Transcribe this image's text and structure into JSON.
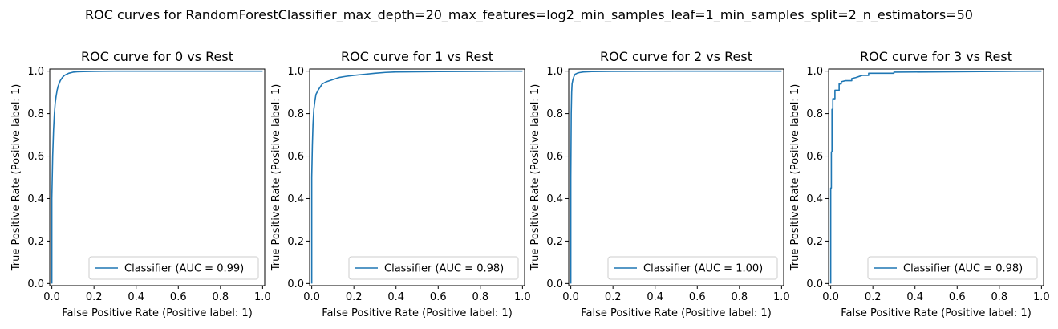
{
  "figure": {
    "suptitle": "ROC curves for RandomForestClassifier_max_depth=20_max_features=log2_min_samples_leaf=1_min_samples_split=2_n_estimators=50"
  },
  "colors": {
    "line": "#1f77b4",
    "axes": "#000000",
    "legend_border": "#cccccc"
  },
  "chart_data": [
    {
      "type": "line",
      "title": "ROC curve for 0 vs Rest",
      "xlabel": "False Positive Rate (Positive label: 1)",
      "ylabel": "True Positive Rate (Positive label: 1)",
      "xlim": [
        -0.01,
        1.01
      ],
      "ylim": [
        -0.01,
        1.01
      ],
      "xticks": [
        0.0,
        0.2,
        0.4,
        0.6,
        0.8,
        1.0
      ],
      "yticks": [
        0.0,
        0.2,
        0.4,
        0.6,
        0.8,
        1.0
      ],
      "xtick_labels": [
        "0.0",
        "0.2",
        "0.4",
        "0.6",
        "0.8",
        "1.0"
      ],
      "ytick_labels": [
        "0.0",
        "0.2",
        "0.4",
        "0.6",
        "0.8",
        "1.0"
      ],
      "grid": false,
      "legend_position": "lower-right",
      "series": [
        {
          "name": "Classifier (AUC = 0.99)",
          "x": [
            0,
            0,
            0.004,
            0.008,
            0.012,
            0.016,
            0.02,
            0.025,
            0.03,
            0.04,
            0.05,
            0.06,
            0.07,
            0.08,
            0.1,
            0.12,
            0.15,
            0.2,
            0.3,
            0.5,
            1.0
          ],
          "y": [
            0,
            0.4,
            0.6,
            0.72,
            0.8,
            0.85,
            0.88,
            0.91,
            0.93,
            0.955,
            0.97,
            0.98,
            0.985,
            0.99,
            0.995,
            0.997,
            0.998,
            0.999,
            1.0,
            1.0,
            1.0
          ]
        }
      ]
    },
    {
      "type": "line",
      "title": "ROC curve for 1 vs Rest",
      "xlabel": "False Positive Rate (Positive label: 1)",
      "ylabel": "True Positive Rate (Positive label: 1)",
      "xlim": [
        -0.01,
        1.01
      ],
      "ylim": [
        -0.01,
        1.01
      ],
      "xticks": [
        0.0,
        0.2,
        0.4,
        0.6,
        0.8,
        1.0
      ],
      "yticks": [
        0.0,
        0.2,
        0.4,
        0.6,
        0.8,
        1.0
      ],
      "xtick_labels": [
        "0.0",
        "0.2",
        "0.4",
        "0.6",
        "0.8",
        "1.0"
      ],
      "ytick_labels": [
        "0.0",
        "0.2",
        "0.4",
        "0.6",
        "0.8",
        "1.0"
      ],
      "grid": false,
      "legend_position": "lower-right",
      "series": [
        {
          "name": "Classifier (AUC = 0.98)",
          "x": [
            0,
            0,
            0.003,
            0.006,
            0.01,
            0.015,
            0.02,
            0.03,
            0.04,
            0.05,
            0.07,
            0.1,
            0.13,
            0.16,
            0.2,
            0.25,
            0.3,
            0.35,
            0.4,
            0.6,
            0.8,
            1.0
          ],
          "y": [
            0,
            0.5,
            0.65,
            0.75,
            0.82,
            0.86,
            0.89,
            0.91,
            0.925,
            0.94,
            0.95,
            0.96,
            0.97,
            0.975,
            0.98,
            0.985,
            0.99,
            0.994,
            0.996,
            0.998,
            0.999,
            1.0
          ]
        }
      ]
    },
    {
      "type": "line",
      "title": "ROC curve for 2 vs Rest",
      "xlabel": "False Positive Rate (Positive label: 1)",
      "ylabel": "True Positive Rate (Positive label: 1)",
      "xlim": [
        -0.01,
        1.01
      ],
      "ylim": [
        -0.01,
        1.01
      ],
      "xticks": [
        0.0,
        0.2,
        0.4,
        0.6,
        0.8,
        1.0
      ],
      "yticks": [
        0.0,
        0.2,
        0.4,
        0.6,
        0.8,
        1.0
      ],
      "xtick_labels": [
        "0.0",
        "0.2",
        "0.4",
        "0.6",
        "0.8",
        "1.0"
      ],
      "ytick_labels": [
        "0.0",
        "0.2",
        "0.4",
        "0.6",
        "0.8",
        "1.0"
      ],
      "grid": false,
      "legend_position": "lower-right",
      "series": [
        {
          "name": "Classifier (AUC = 1.00)",
          "x": [
            0,
            0,
            0.002,
            0.004,
            0.006,
            0.01,
            0.015,
            0.02,
            0.03,
            0.04,
            0.06,
            0.1,
            0.2,
            0.5,
            1.0
          ],
          "y": [
            0,
            0.5,
            0.8,
            0.9,
            0.94,
            0.96,
            0.975,
            0.985,
            0.99,
            0.993,
            0.996,
            0.998,
            0.999,
            1.0,
            1.0
          ]
        }
      ]
    },
    {
      "type": "line",
      "title": "ROC curve for 3 vs Rest",
      "xlabel": "False Positive Rate (Positive label: 1)",
      "ylabel": "True Positive Rate (Positive label: 1)",
      "xlim": [
        -0.01,
        1.01
      ],
      "ylim": [
        -0.01,
        1.01
      ],
      "xticks": [
        0.0,
        0.2,
        0.4,
        0.6,
        0.8,
        1.0
      ],
      "yticks": [
        0.0,
        0.2,
        0.4,
        0.6,
        0.8,
        1.0
      ],
      "xtick_labels": [
        "0.0",
        "0.2",
        "0.4",
        "0.6",
        "0.8",
        "1.0"
      ],
      "ytick_labels": [
        "0.0",
        "0.2",
        "0.4",
        "0.6",
        "0.8",
        "1.0"
      ],
      "grid": false,
      "legend_position": "lower-right",
      "series": [
        {
          "name": "Classifier (AUC = 0.98)",
          "x": [
            0,
            0,
            0.003,
            0.003,
            0.006,
            0.006,
            0.01,
            0.01,
            0.02,
            0.02,
            0.03,
            0.04,
            0.04,
            0.05,
            0.05,
            0.07,
            0.09,
            0.1,
            0.1,
            0.12,
            0.15,
            0.18,
            0.18,
            0.3,
            0.3,
            1.0
          ],
          "y": [
            0,
            0.45,
            0.45,
            0.62,
            0.62,
            0.82,
            0.82,
            0.87,
            0.87,
            0.91,
            0.91,
            0.91,
            0.94,
            0.94,
            0.95,
            0.955,
            0.955,
            0.955,
            0.965,
            0.97,
            0.98,
            0.98,
            0.99,
            0.99,
            0.995,
            1.0
          ]
        }
      ]
    }
  ]
}
